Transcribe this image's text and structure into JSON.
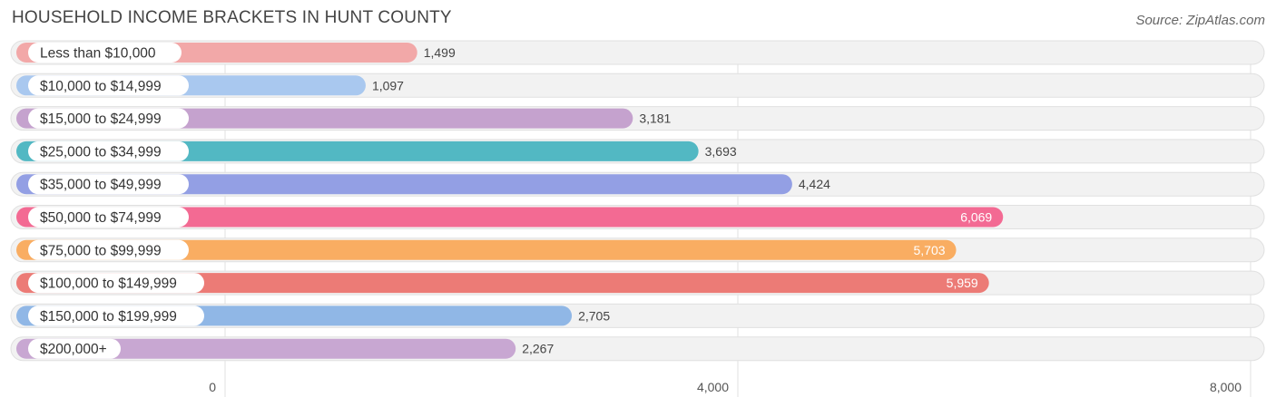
{
  "title": "HOUSEHOLD INCOME BRACKETS IN HUNT COUNTY",
  "source": "Source: ZipAtlas.com",
  "chart_data": {
    "type": "bar",
    "orientation": "horizontal",
    "title": "HOUSEHOLD INCOME BRACKETS IN HUNT COUNTY",
    "xlabel": "",
    "ylabel": "",
    "xlim": [
      0,
      8000
    ],
    "x_ticks": [
      0,
      4000,
      8000
    ],
    "x_tick_labels": [
      "0",
      "4,000",
      "8,000"
    ],
    "grid": true,
    "legend": "none",
    "categories": [
      "Less than $10,000",
      "$10,000 to $14,999",
      "$15,000 to $24,999",
      "$25,000 to $34,999",
      "$35,000 to $49,999",
      "$50,000 to $74,999",
      "$75,000 to $99,999",
      "$100,000 to $149,999",
      "$150,000 to $199,999",
      "$200,000+"
    ],
    "values": [
      1499,
      1097,
      3181,
      3693,
      4424,
      6069,
      5703,
      5959,
      2705,
      2267
    ],
    "value_labels": [
      "1,499",
      "1,097",
      "3,181",
      "3,693",
      "4,424",
      "6,069",
      "5,703",
      "5,959",
      "2,705",
      "2,267"
    ],
    "colors": [
      "#f2a8a8",
      "#a9c8ef",
      "#c5a2ce",
      "#52b8c3",
      "#939fe4",
      "#f36a93",
      "#f9ad62",
      "#ec7b76",
      "#90b7e6",
      "#c8a7d2"
    ]
  }
}
